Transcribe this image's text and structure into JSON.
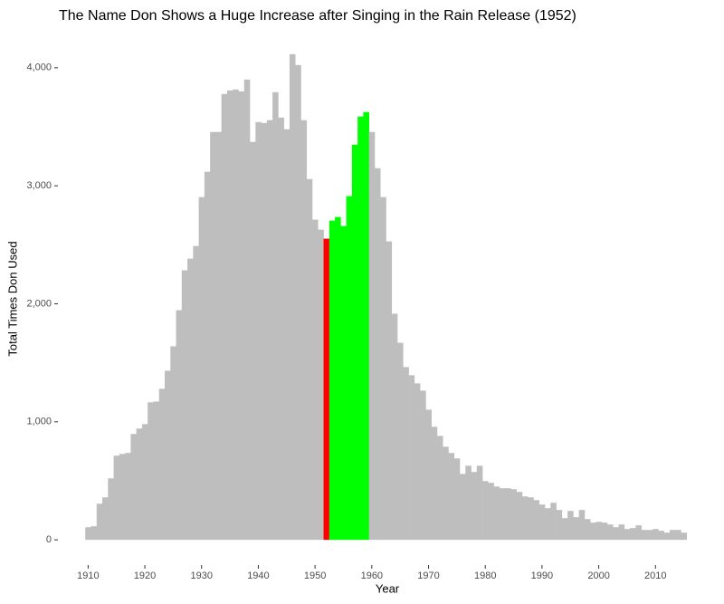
{
  "chart_data": {
    "type": "bar",
    "title": "The Name Don Shows a Huge Increase after Singing in the Rain Release (1952)",
    "x_label": "Year",
    "y_label": "Total Times Don Used",
    "x": [
      1910,
      1911,
      1912,
      1913,
      1914,
      1915,
      1916,
      1917,
      1918,
      1919,
      1920,
      1921,
      1922,
      1923,
      1924,
      1925,
      1926,
      1927,
      1928,
      1929,
      1930,
      1931,
      1932,
      1933,
      1934,
      1935,
      1936,
      1937,
      1938,
      1939,
      1940,
      1941,
      1942,
      1943,
      1944,
      1945,
      1946,
      1947,
      1948,
      1949,
      1950,
      1951,
      1952,
      1953,
      1954,
      1955,
      1956,
      1957,
      1958,
      1959,
      1960,
      1961,
      1962,
      1963,
      1964,
      1965,
      1966,
      1967,
      1968,
      1969,
      1970,
      1971,
      1972,
      1973,
      1974,
      1975,
      1976,
      1977,
      1978,
      1979,
      1980,
      1981,
      1982,
      1983,
      1984,
      1985,
      1986,
      1987,
      1988,
      1989,
      1990,
      1991,
      1992,
      1993,
      1994,
      1995,
      1996,
      1997,
      1998,
      1999,
      2000,
      2001,
      2002,
      2003,
      2004,
      2005,
      2006,
      2007,
      2008,
      2009,
      2010,
      2011,
      2012,
      2013,
      2014,
      2015
    ],
    "values": [
      107,
      115,
      306,
      360,
      521,
      713,
      728,
      736,
      897,
      943,
      981,
      1165,
      1172,
      1280,
      1433,
      1640,
      1946,
      2284,
      2383,
      2490,
      2904,
      3119,
      3456,
      3456,
      3778,
      3808,
      3816,
      3800,
      3900,
      3372,
      3540,
      3532,
      3556,
      3793,
      3578,
      3479,
      4115,
      4023,
      3556,
      3057,
      2713,
      2628,
      2552,
      2705,
      2736,
      2659,
      2912,
      3349,
      3586,
      3625,
      3456,
      3149,
      2904,
      2529,
      1916,
      1670,
      1464,
      1395,
      1326,
      1264,
      1103,
      958,
      881,
      789,
      736,
      690,
      559,
      628,
      575,
      628,
      498,
      483,
      452,
      437,
      437,
      429,
      406,
      368,
      360,
      337,
      299,
      268,
      314,
      253,
      184,
      245,
      192,
      253,
      176,
      146,
      153,
      146,
      130,
      107,
      130,
      92,
      100,
      123,
      84,
      84,
      92,
      77,
      61,
      84,
      84,
      61
    ],
    "colors": [
      "#bebebe",
      "#bebebe",
      "#bebebe",
      "#bebebe",
      "#bebebe",
      "#bebebe",
      "#bebebe",
      "#bebebe",
      "#bebebe",
      "#bebebe",
      "#bebebe",
      "#bebebe",
      "#bebebe",
      "#bebebe",
      "#bebebe",
      "#bebebe",
      "#bebebe",
      "#bebebe",
      "#bebebe",
      "#bebebe",
      "#bebebe",
      "#bebebe",
      "#bebebe",
      "#bebebe",
      "#bebebe",
      "#bebebe",
      "#bebebe",
      "#bebebe",
      "#bebebe",
      "#bebebe",
      "#bebebe",
      "#bebebe",
      "#bebebe",
      "#bebebe",
      "#bebebe",
      "#bebebe",
      "#bebebe",
      "#bebebe",
      "#bebebe",
      "#bebebe",
      "#bebebe",
      "#bebebe",
      "#ff0000",
      "#00ff00",
      "#00ff00",
      "#00ff00",
      "#00ff00",
      "#00ff00",
      "#00ff00",
      "#00ff00",
      "#bebebe",
      "#bebebe",
      "#bebebe",
      "#bebebe",
      "#bebebe",
      "#bebebe",
      "#bebebe",
      "#bebebe",
      "#bebebe",
      "#bebebe",
      "#bebebe",
      "#bebebe",
      "#bebebe",
      "#bebebe",
      "#bebebe",
      "#bebebe",
      "#bebebe",
      "#bebebe",
      "#bebebe",
      "#bebebe",
      "#bebebe",
      "#bebebe",
      "#bebebe",
      "#bebebe",
      "#bebebe",
      "#bebebe",
      "#bebebe",
      "#bebebe",
      "#bebebe",
      "#bebebe",
      "#bebebe",
      "#bebebe",
      "#bebebe",
      "#bebebe",
      "#bebebe",
      "#bebebe",
      "#bebebe",
      "#bebebe",
      "#bebebe",
      "#bebebe",
      "#bebebe",
      "#bebebe",
      "#bebebe",
      "#bebebe",
      "#bebebe",
      "#bebebe",
      "#bebebe",
      "#bebebe",
      "#bebebe",
      "#bebebe",
      "#bebebe",
      "#bebebe",
      "#bebebe",
      "#bebebe",
      "#bebebe",
      "#bebebe"
    ],
    "xlim": [
      1904.2,
      2020.8
    ],
    "xticks": [
      1910,
      1920,
      1930,
      1940,
      1950,
      1960,
      1970,
      1980,
      1990,
      2000,
      2010
    ],
    "ylim": [
      -206,
      4321
    ],
    "yticks": [
      0,
      {
        "value": 1000,
        "label": "1,000"
      },
      {
        "value": 2000,
        "label": "2,000"
      },
      {
        "value": 3000,
        "label": "3,000"
      },
      {
        "value": 4000,
        "label": "4,000"
      }
    ],
    "grid": false
  }
}
